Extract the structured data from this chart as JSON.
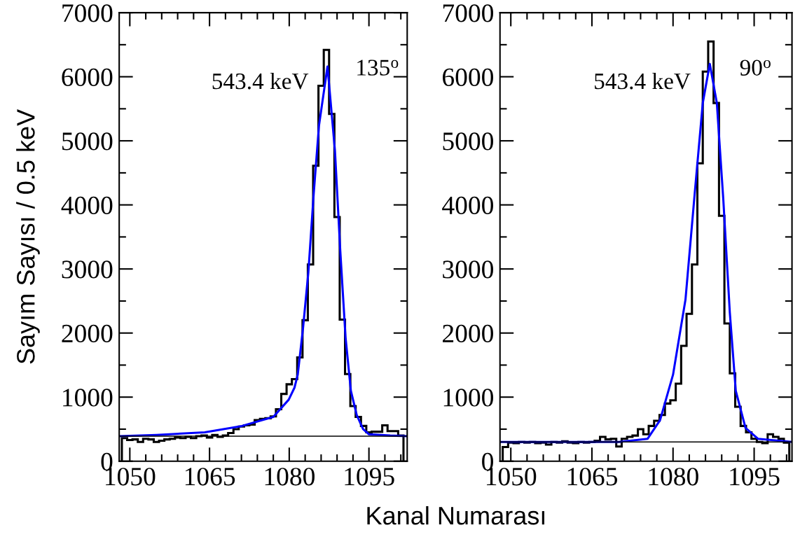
{
  "chart_data": [
    {
      "type": "histogram",
      "ylabel": "Sayım Sayısı / 0.5 keV",
      "xlabel": "Kanal Numarası",
      "annotations": [
        "543.4 keV",
        "135$^{o}$"
      ],
      "xlim": [
        1048,
        1102.2
      ],
      "ylim": [
        0,
        7000
      ],
      "xticks": [
        {
          "value": 1050,
          "label": "1050"
        },
        {
          "value": 1053,
          "label": null
        },
        {
          "value": 1056,
          "label": null
        },
        {
          "value": 1059,
          "label": null
        },
        {
          "value": 1062,
          "label": null
        },
        {
          "value": 1065,
          "label": "1065"
        },
        {
          "value": 1068,
          "label": null
        },
        {
          "value": 1071,
          "label": null
        },
        {
          "value": 1074,
          "label": null
        },
        {
          "value": 1077,
          "label": null
        },
        {
          "value": 1080,
          "label": "1080"
        },
        {
          "value": 1083,
          "label": null
        },
        {
          "value": 1086,
          "label": null
        },
        {
          "value": 1089,
          "label": null
        },
        {
          "value": 1092,
          "label": null
        },
        {
          "value": 1095,
          "label": "1095"
        },
        {
          "value": 1098,
          "label": null
        },
        {
          "value": 1101,
          "label": null
        }
      ],
      "yticks": [
        0,
        {
          "value": 500,
          "label": null
        },
        1000,
        {
          "value": 1500,
          "label": null
        },
        2000,
        {
          "value": 2500,
          "label": null
        },
        3000,
        {
          "value": 3500,
          "label": null
        },
        4000,
        {
          "value": 4500,
          "label": null
        },
        5000,
        {
          "value": 5500,
          "label": null
        },
        6000,
        {
          "value": 6500,
          "label": null
        },
        7000
      ],
      "ref_lines": [
        {
          "axis": "y",
          "value": 390,
          "color": "#000000"
        }
      ],
      "series": [
        {
          "color": "#000000",
          "bins": [
            1048.5,
            1049.5,
            1050.5,
            1051.5,
            1052.5,
            1053.5,
            1054.5,
            1055.5,
            1056.5,
            1057.5,
            1058.5,
            1059.5,
            1060.5,
            1061.5,
            1062.5,
            1063.5,
            1064.5,
            1065.5,
            1066.5,
            1067.5,
            1068.5,
            1069.5,
            1070.5,
            1071.5,
            1072.5,
            1073.5,
            1074.5,
            1075.5,
            1076.5,
            1077.5,
            1078.5,
            1079.5,
            1080.5,
            1081.5,
            1082.5,
            1083.5,
            1084.5,
            1085.5,
            1086.5,
            1087.5,
            1088.5,
            1089.5,
            1090.5,
            1091.5,
            1092.5,
            1093.5,
            1094.5,
            1095.5,
            1096.5,
            1097.5,
            1098.5,
            1099.5,
            1100.5,
            1101.5
          ],
          "values": [
            360,
            330,
            340,
            300,
            350,
            340,
            300,
            320,
            340,
            350,
            370,
            360,
            380,
            360,
            390,
            400,
            370,
            410,
            380,
            400,
            440,
            500,
            540,
            560,
            570,
            640,
            660,
            670,
            700,
            810,
            1050,
            1200,
            1280,
            1620,
            2200,
            3070,
            4610,
            5860,
            6420,
            5420,
            3810,
            2210,
            1360,
            860,
            690,
            550,
            450,
            460,
            460,
            560,
            470,
            470,
            400
          ]
        },
        {
          "type": "line",
          "color": "#0000ff",
          "x": [
            1048,
            1055,
            1064.1,
            1071.1,
            1077,
            1079.9,
            1081,
            1081.6,
            1082.6,
            1083.6,
            1084.6,
            1085.6,
            1087.2,
            1088.6,
            1089.6,
            1090.6,
            1091.6,
            1092.7,
            1093.9,
            1095,
            1099,
            1102.2
          ],
          "values": [
            390,
            410,
            450,
            550,
            690,
            960,
            1150,
            1350,
            2080,
            2950,
            4170,
            5240,
            6160,
            4850,
            3290,
            1930,
            1100,
            720,
            500,
            420,
            400,
            390
          ]
        }
      ]
    },
    {
      "type": "histogram",
      "annotations": [
        "543.4 keV",
        "90$^{o}$"
      ],
      "xlim": [
        1048,
        1102.0
      ],
      "ylim": [
        0,
        7000
      ],
      "xticks": [
        {
          "value": 1050,
          "label": "1050"
        },
        {
          "value": 1053,
          "label": null
        },
        {
          "value": 1056,
          "label": null
        },
        {
          "value": 1059,
          "label": null
        },
        {
          "value": 1062,
          "label": null
        },
        {
          "value": 1065,
          "label": "1065"
        },
        {
          "value": 1068,
          "label": null
        },
        {
          "value": 1071,
          "label": null
        },
        {
          "value": 1074,
          "label": null
        },
        {
          "value": 1077,
          "label": null
        },
        {
          "value": 1080,
          "label": "1080"
        },
        {
          "value": 1083,
          "label": null
        },
        {
          "value": 1086,
          "label": null
        },
        {
          "value": 1089,
          "label": null
        },
        {
          "value": 1092,
          "label": null
        },
        {
          "value": 1095,
          "label": "1095"
        },
        {
          "value": 1098,
          "label": null
        },
        {
          "value": 1101,
          "label": null
        }
      ],
      "yticks": [
        0,
        {
          "value": 500,
          "label": null
        },
        1000,
        {
          "value": 1500,
          "label": null
        },
        2000,
        {
          "value": 2500,
          "label": null
        },
        3000,
        {
          "value": 3500,
          "label": null
        },
        4000,
        {
          "value": 4500,
          "label": null
        },
        5000,
        {
          "value": 5500,
          "label": null
        },
        6000,
        {
          "value": 6500,
          "label": null
        },
        7000
      ],
      "ref_lines": [
        {
          "axis": "y",
          "value": 300,
          "color": "#000000"
        }
      ],
      "series": [
        {
          "color": "#000000",
          "bins": [
            1048.5,
            1049.5,
            1050.5,
            1051.5,
            1052.5,
            1053.5,
            1054.5,
            1055.5,
            1056.5,
            1057.5,
            1058.5,
            1059.5,
            1060.5,
            1061.5,
            1062.5,
            1063.5,
            1064.5,
            1065.5,
            1066.5,
            1067.5,
            1068.5,
            1069.5,
            1070.5,
            1071.5,
            1072.5,
            1073.5,
            1074.5,
            1075.5,
            1076.5,
            1077.5,
            1078.5,
            1079.5,
            1080.5,
            1081.5,
            1082.5,
            1083.5,
            1084.5,
            1085.5,
            1086.5,
            1087.5,
            1088.5,
            1089.5,
            1090.5,
            1091.5,
            1092.5,
            1093.5,
            1094.5,
            1095.5,
            1096.5,
            1097.5,
            1098.5,
            1099.5,
            1100.5,
            1101.5
          ],
          "values": [
            220,
            290,
            280,
            300,
            290,
            300,
            280,
            290,
            260,
            300,
            290,
            310,
            290,
            280,
            300,
            290,
            300,
            320,
            380,
            340,
            350,
            230,
            350,
            380,
            400,
            500,
            420,
            550,
            630,
            720,
            900,
            950,
            1210,
            1800,
            2300,
            3070,
            4650,
            6080,
            6550,
            5590,
            3830,
            2150,
            1370,
            850,
            550,
            450,
            350,
            300,
            280,
            420,
            380,
            350,
            290
          ]
        },
        {
          "type": "line",
          "color": "#0000ff",
          "x": [
            1048,
            1060,
            1070,
            1075.3,
            1077.6,
            1080,
            1082.3,
            1084,
            1085.5,
            1086.8,
            1088.1,
            1089.3,
            1090.5,
            1091.6,
            1093.4,
            1095.7,
            1102
          ],
          "values": [
            300,
            300,
            300,
            350,
            640,
            1350,
            2520,
            4170,
            5590,
            6200,
            5590,
            4080,
            2320,
            1100,
            520,
            350,
            300
          ]
        }
      ]
    }
  ]
}
